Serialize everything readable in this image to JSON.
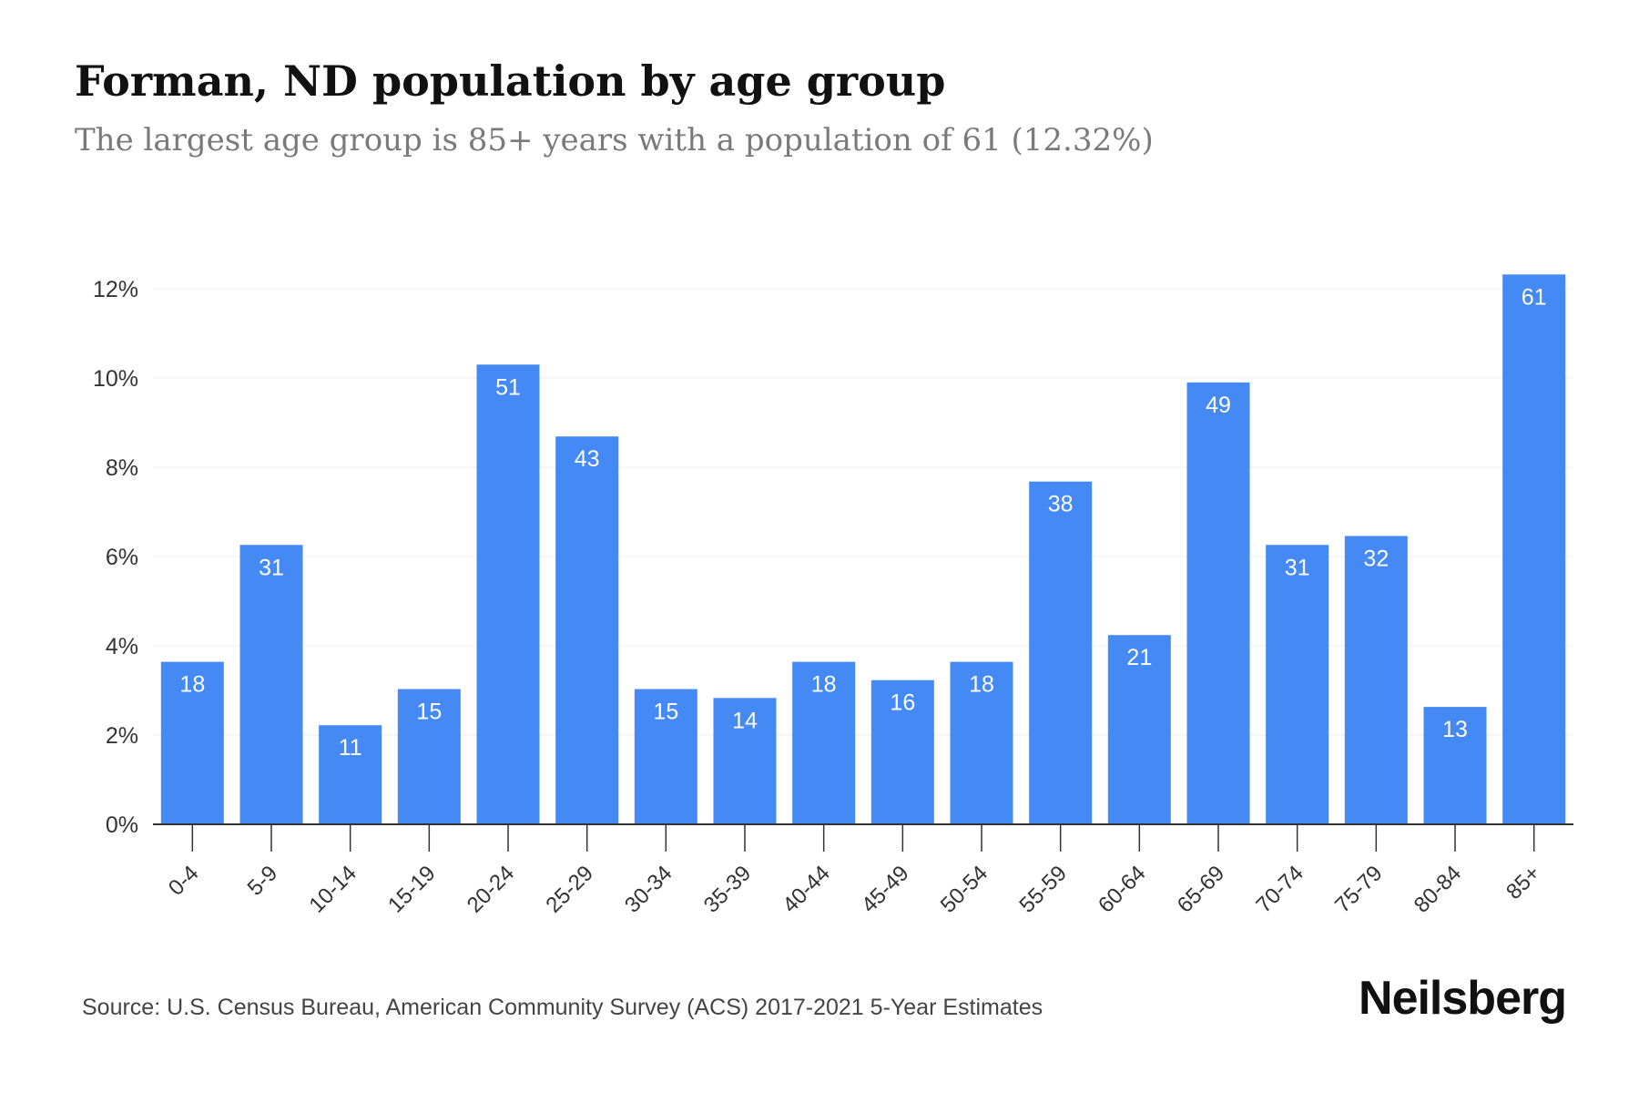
{
  "title": "Forman, ND population by age group",
  "subtitle": "The largest age group is 85+ years with a population of 61 (12.32%)",
  "source": "Source: U.S. Census Bureau, American Community Survey (ACS) 2017-2021 5-Year Estimates",
  "brand": "Neilsberg",
  "colors": {
    "bar": "#4589f5",
    "bar_label": "#ffffff",
    "axis": "#333333",
    "grid": "#eeeeee",
    "tick_text": "#333333"
  },
  "chart_data": {
    "type": "bar",
    "categories": [
      "0-4",
      "5-9",
      "10-14",
      "15-19",
      "20-24",
      "25-29",
      "30-34",
      "35-39",
      "40-44",
      "45-49",
      "50-54",
      "55-59",
      "60-64",
      "65-69",
      "70-74",
      "75-79",
      "80-84",
      "85+"
    ],
    "values": [
      3.64,
      6.26,
      2.22,
      3.03,
      10.3,
      8.69,
      3.03,
      2.83,
      3.64,
      3.23,
      3.64,
      7.68,
      4.24,
      9.9,
      6.26,
      6.46,
      2.63,
      12.32
    ],
    "data_labels": [
      "18",
      "31",
      "11",
      "15",
      "51",
      "43",
      "15",
      "14",
      "18",
      "16",
      "18",
      "38",
      "21",
      "49",
      "31",
      "32",
      "13",
      "61"
    ],
    "y_ticks": [
      0,
      2,
      4,
      6,
      8,
      10,
      12
    ],
    "y_tick_labels": [
      "0%",
      "2%",
      "4%",
      "6%",
      "8%",
      "10%",
      "12%"
    ],
    "ylim": [
      0,
      12.32
    ],
    "xlabel": "",
    "ylabel": "",
    "grid": true,
    "legend": "none"
  }
}
